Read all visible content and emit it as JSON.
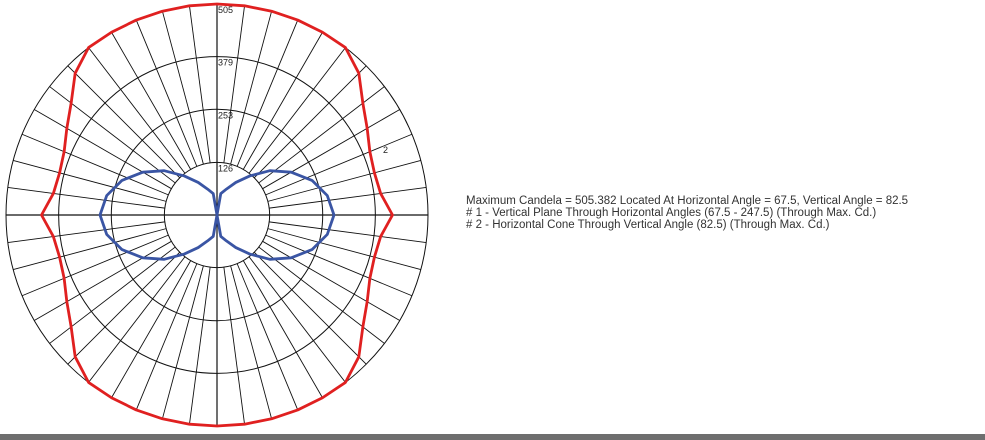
{
  "info": {
    "max_line": "Maximum Candela = 505.382   Located At Horizontal Angle = 67.5, Vertical Angle = 82.5",
    "curve1_line": "# 1 - Vertical Plane Through Horizontal Angles (67.5 - 247.5) (Through Max. Cd.)",
    "curve2_line": "# 2 - Horizontal Cone Through Vertical Angle (82.5) (Through Max. Cd.)"
  },
  "chart_data": {
    "type": "polar",
    "radial_ticks": [
      "126",
      "253",
      "379",
      "505"
    ],
    "radial_tick_values": [
      126,
      253,
      379,
      505
    ],
    "r_max": 505,
    "spoke_step_deg": 7.5,
    "curve_labels": [
      "1",
      "2"
    ],
    "series": [
      {
        "name": "# 1",
        "color": "#e02020",
        "angles_deg": [
          0,
          7.5,
          15,
          22.5,
          30,
          37.5,
          45,
          52.5,
          60,
          67.5,
          75,
          82.5,
          90,
          97.5,
          105,
          112.5,
          120,
          127.5,
          135,
          142.5,
          150,
          157.5,
          165,
          172.5,
          180
        ],
        "values": [
          505,
          505,
          505,
          505,
          505,
          505,
          480,
          440,
          415,
          396,
          390,
          395,
          420,
          395,
          390,
          396,
          415,
          440,
          480,
          505,
          505,
          505,
          505,
          505,
          505
        ]
      },
      {
        "name": "# 2",
        "color": "#3a55a4",
        "angles_deg": [
          0,
          10,
          20,
          30,
          40,
          50,
          60,
          70,
          80,
          90,
          100,
          110,
          120,
          130,
          140,
          150,
          160,
          170,
          180
        ],
        "values": [
          0,
          52,
          66,
          90,
          122,
          165,
          205,
          242,
          268,
          280,
          268,
          242,
          205,
          165,
          122,
          90,
          66,
          52,
          0
        ]
      }
    ]
  }
}
